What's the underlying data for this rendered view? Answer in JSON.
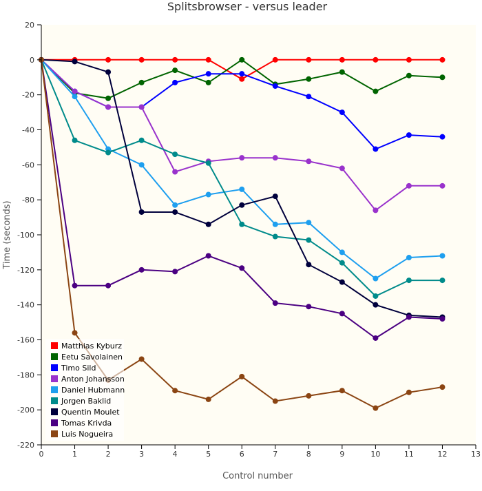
{
  "chart_data": {
    "type": "line",
    "title": "Splitsbrowser - versus leader",
    "xlabel": "Control number",
    "ylabel": "Time (seconds)",
    "ylim": [
      -220,
      20
    ],
    "y_ticks": [
      20,
      0,
      -20,
      -40,
      -60,
      -80,
      -100,
      -120,
      -140,
      -160,
      -180,
      -200,
      -220
    ],
    "x_ticks": [
      0,
      1,
      2,
      3,
      4,
      5,
      6,
      7,
      8,
      9,
      10,
      11,
      12,
      13
    ],
    "x_tick_labels": [
      "0",
      "1",
      "2",
      "3",
      "4",
      "5",
      "6",
      "7",
      "8",
      "9",
      "10",
      "11",
      "12",
      "13"
    ],
    "x": [
      0,
      1,
      2,
      3,
      4,
      5,
      6,
      7,
      8,
      9,
      10,
      11,
      12
    ],
    "legend_position": "bottom-left",
    "grid": false,
    "background_color": "#fffdf4",
    "series": [
      {
        "name": "Matthias Kyburz",
        "color": "#ff0000",
        "values": [
          0,
          0,
          0,
          0,
          0,
          0,
          -11,
          0,
          0,
          0,
          0,
          0,
          0
        ]
      },
      {
        "name": "Eetu Savolainen",
        "color": "#006400",
        "values": [
          0,
          -19,
          -22,
          -13,
          -6,
          -13,
          0,
          -14,
          -11,
          -7,
          -18,
          -9,
          -10
        ]
      },
      {
        "name": "Timo Sild",
        "color": "#0000ff",
        "values": [
          0,
          -18,
          -27,
          -27,
          -13,
          -8,
          -8,
          -15,
          -21,
          -30,
          -51,
          -43,
          -44
        ]
      },
      {
        "name": "Anton Johansson",
        "color": "#9932cc",
        "values": [
          0,
          -18,
          -27,
          -27,
          -64,
          -58,
          -56,
          -56,
          -58,
          -62,
          -86,
          -72,
          -72
        ]
      },
      {
        "name": "Daniel Hubmann",
        "color": "#1e9fef",
        "values": [
          0,
          -21,
          -51,
          -60,
          -83,
          -77,
          -74,
          -94,
          -93,
          -110,
          -125,
          -113,
          -112
        ]
      },
      {
        "name": "Jorgen Baklid",
        "color": "#008b8b",
        "values": [
          0,
          -46,
          -53,
          -46,
          -54,
          -59,
          -94,
          -101,
          -103,
          -116,
          -135,
          -126,
          -126
        ]
      },
      {
        "name": "Quentin Moulet",
        "color": "#00003c",
        "values": [
          0,
          -1,
          -7,
          -87,
          -87,
          -94,
          -83,
          -78,
          -117,
          -127,
          -140,
          -146,
          -147
        ]
      },
      {
        "name": "Tomas Krivda",
        "color": "#4b0082",
        "values": [
          0,
          -129,
          -129,
          -120,
          -121,
          -112,
          -119,
          -139,
          -141,
          -145,
          -159,
          -147,
          -148
        ]
      },
      {
        "name": "Luis Nogueira",
        "color": "#8b4513",
        "values": [
          0,
          -156,
          -183,
          -171,
          -189,
          -194,
          -181,
          -195,
          -192,
          -189,
          -199,
          -190,
          -187
        ]
      }
    ]
  }
}
